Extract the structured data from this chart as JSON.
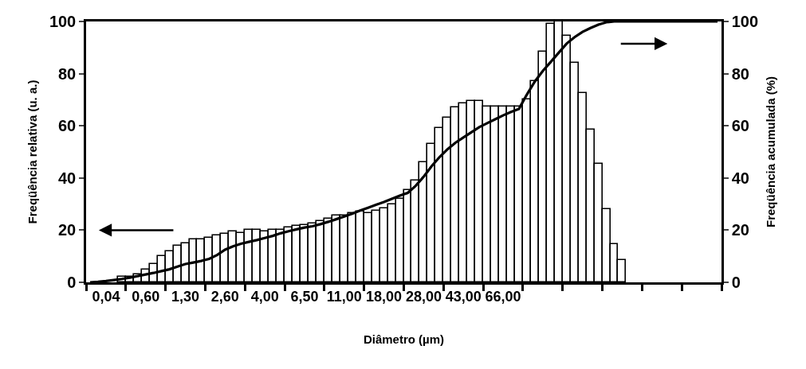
{
  "chart_data": {
    "type": "bar",
    "xlabel": "Diâmetro (µm)",
    "ylabel": "Freqüência relativa (u. a.)",
    "y2label": "Freqüência acumulada (%)",
    "categories": [
      null,
      null,
      "0,04",
      null,
      null,
      null,
      null,
      "0,60",
      null,
      null,
      null,
      null,
      "1,30",
      null,
      null,
      null,
      null,
      "2,60",
      null,
      null,
      null,
      null,
      "4,00",
      null,
      null,
      null,
      null,
      "6,50",
      null,
      null,
      null,
      null,
      "11,00",
      null,
      null,
      null,
      null,
      "18,00",
      null,
      null,
      null,
      null,
      "28,00",
      null,
      null,
      null,
      null,
      "43,00",
      null,
      null,
      null,
      null,
      "66,00",
      null,
      null,
      null,
      null,
      null,
      null,
      null,
      null,
      null,
      null,
      null,
      null,
      null,
      null,
      null,
      null,
      null,
      null,
      null,
      null,
      null,
      null,
      null,
      null,
      null,
      null,
      null
    ],
    "series": [
      {
        "color": "#ffffff",
        "values": [
          null,
          null,
          null,
          null,
          2,
          2,
          3,
          5,
          7,
          10,
          12,
          14,
          15,
          16.5,
          16.5,
          17,
          18,
          18.5,
          19.5,
          19,
          20,
          20,
          19.5,
          20,
          20,
          21,
          21.5,
          22,
          22.5,
          23.5,
          24.5,
          25.5,
          25.5,
          26.5,
          27,
          26.5,
          27.5,
          28.5,
          30,
          32,
          35.5,
          39,
          46,
          53,
          59,
          63,
          67,
          68.5,
          69.5,
          69.5,
          67.5,
          67.5,
          67.5,
          67.5,
          67.5,
          70,
          77,
          88.5,
          99,
          100,
          94.5,
          84,
          72.5,
          58.5,
          45.5,
          28,
          14.5,
          8.5,
          null,
          null,
          null,
          null,
          null,
          null,
          null,
          null,
          null,
          null,
          null,
          null
        ]
      },
      {
        "type": "line",
        "axis": "y2",
        "color": "#000000",
        "values": [
          0,
          0.2,
          0.5,
          0.9,
          1.3,
          1.8,
          2.4,
          3,
          3.6,
          4.3,
          5,
          6,
          7,
          7.6,
          8.2,
          9,
          10.5,
          12.5,
          13.8,
          14.8,
          15.5,
          16.2,
          17,
          17.8,
          18.8,
          19.6,
          20.3,
          21,
          21.5,
          22.3,
          23.2,
          24.2,
          25.2,
          26.3,
          27.5,
          28.6,
          29.7,
          30.8,
          32,
          33.2,
          34.3,
          37,
          40.5,
          44.5,
          48,
          51,
          53.5,
          55.5,
          57.5,
          59.5,
          61,
          62.5,
          64,
          65.3,
          66.5,
          72,
          77,
          81,
          84.5,
          88,
          91.5,
          94,
          96,
          97.5,
          98.8,
          99.7,
          100,
          100,
          100,
          100,
          100,
          100,
          100,
          100,
          100,
          100,
          100,
          100,
          100,
          100
        ]
      }
    ],
    "ylim": [
      0,
      100
    ],
    "yticks": [
      0,
      20,
      40,
      60,
      80,
      100
    ],
    "y2lim": [
      0,
      100
    ],
    "y2ticks": [
      0,
      20,
      40,
      60,
      80,
      100
    ],
    "grid": false,
    "marker": "none",
    "line_style": "solid"
  }
}
